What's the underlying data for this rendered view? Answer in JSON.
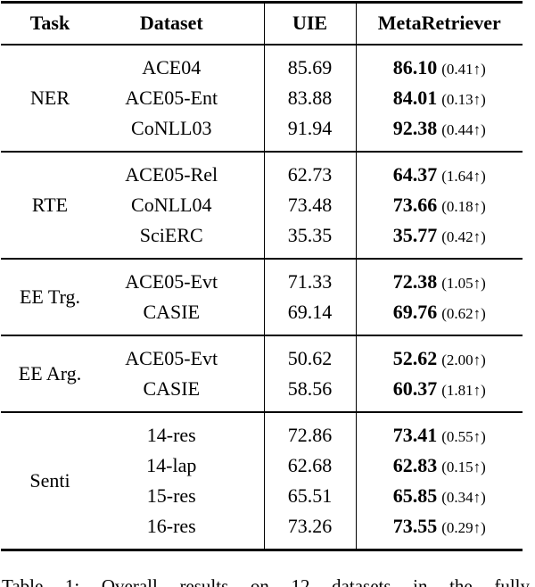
{
  "table": {
    "headers": [
      "Task",
      "Dataset",
      "UIE",
      "MetaRetriever"
    ],
    "groups": [
      {
        "task": "NER",
        "rows": [
          {
            "dataset": "ACE04",
            "uie": "85.69",
            "meta": "86.10",
            "delta": "(0.41↑)"
          },
          {
            "dataset": "ACE05-Ent",
            "uie": "83.88",
            "meta": "84.01",
            "delta": "(0.13↑)"
          },
          {
            "dataset": "CoNLL03",
            "uie": "91.94",
            "meta": "92.38",
            "delta": "(0.44↑)"
          }
        ]
      },
      {
        "task": "RTE",
        "rows": [
          {
            "dataset": "ACE05-Rel",
            "uie": "62.73",
            "meta": "64.37",
            "delta": "(1.64↑)"
          },
          {
            "dataset": "CoNLL04",
            "uie": "73.48",
            "meta": "73.66",
            "delta": "(0.18↑)"
          },
          {
            "dataset": "SciERC",
            "uie": "35.35",
            "meta": "35.77",
            "delta": "(0.42↑)"
          }
        ]
      },
      {
        "task": "EE Trg.",
        "rows": [
          {
            "dataset": "ACE05-Evt",
            "uie": "71.33",
            "meta": "72.38",
            "delta": "(1.05↑)"
          },
          {
            "dataset": "CASIE",
            "uie": "69.14",
            "meta": "69.76",
            "delta": "(0.62↑)"
          }
        ]
      },
      {
        "task": "EE Arg.",
        "rows": [
          {
            "dataset": "ACE05-Evt",
            "uie": "50.62",
            "meta": "52.62",
            "delta": "(2.00↑)"
          },
          {
            "dataset": "CASIE",
            "uie": "58.56",
            "meta": "60.37",
            "delta": "(1.81↑)"
          }
        ]
      },
      {
        "task": "Senti",
        "rows": [
          {
            "dataset": "14-res",
            "uie": "72.86",
            "meta": "73.41",
            "delta": "(0.55↑)"
          },
          {
            "dataset": "14-lap",
            "uie": "62.68",
            "meta": "62.83",
            "delta": "(0.15↑)"
          },
          {
            "dataset": "15-res",
            "uie": "65.51",
            "meta": "65.85",
            "delta": "(0.34↑)"
          },
          {
            "dataset": "16-res",
            "uie": "73.26",
            "meta": "73.55",
            "delta": "(0.29↑)"
          }
        ]
      }
    ]
  },
  "caption": "Table 1: Overall results on 12 datasets in the fully"
}
